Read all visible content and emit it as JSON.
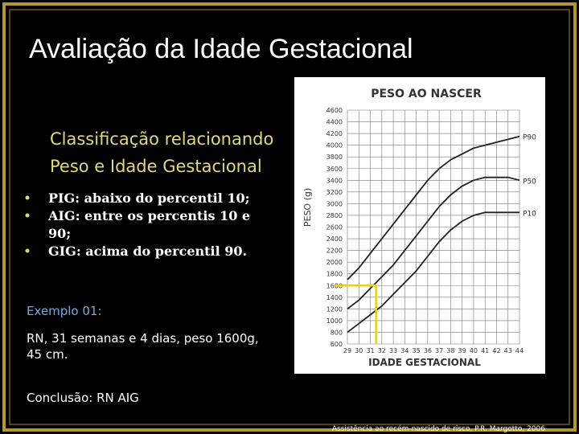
{
  "slide": {
    "title": "Avaliação da Idade Gestacional",
    "subtitle_lines": [
      "Classificação relacionando",
      "Peso e Idade Gestacional"
    ],
    "bullets": [
      [
        "PIG: abaixo do percentil 10;"
      ],
      [
        "AIG: entre os percentis 10 e",
        "90;"
      ],
      [
        "GIG: acima do percentil 90."
      ]
    ],
    "example_heading": "Exemplo 01:",
    "example_lines": [
      "RN, 31 semanas e 4 dias, peso 1600g,",
      "45 cm."
    ],
    "conclusion": "Conclusão: RN AIG",
    "footer": "Assistência ao recém-nascido de risco, P.R. Margotto, 2006"
  },
  "chart_data": {
    "type": "line",
    "title": "PESO AO NASCER",
    "y_label": "PESO (g)",
    "x_label": "IDADE GESTACIONAL",
    "x": [
      29,
      30,
      31,
      32,
      33,
      34,
      35,
      36,
      37,
      38,
      39,
      40,
      41,
      42,
      43,
      44
    ],
    "xlim": [
      29,
      44
    ],
    "xticks": [
      29,
      30,
      31,
      32,
      33,
      34,
      35,
      36,
      37,
      38,
      39,
      40,
      41,
      42,
      43,
      44
    ],
    "ylim": [
      600,
      4600
    ],
    "yticks": [
      600,
      800,
      1000,
      1200,
      1400,
      1600,
      1800,
      2000,
      2200,
      2400,
      2600,
      2800,
      3000,
      3200,
      3400,
      3600,
      3800,
      4000,
      4200,
      4400,
      4600
    ],
    "grid": true,
    "series": [
      {
        "name": "P90",
        "color": "#222222",
        "values": [
          1700,
          1900,
          2150,
          2400,
          2650,
          2900,
          3150,
          3400,
          3600,
          3750,
          3850,
          3950,
          4000,
          4050,
          4100,
          4150
        ]
      },
      {
        "name": "P50",
        "color": "#222222",
        "values": [
          1200,
          1350,
          1550,
          1750,
          1950,
          2200,
          2450,
          2700,
          2950,
          3150,
          3300,
          3400,
          3450,
          3450,
          3450,
          3400
        ]
      },
      {
        "name": "P10",
        "color": "#222222",
        "values": [
          800,
          950,
          1100,
          1250,
          1450,
          1650,
          1850,
          2100,
          2350,
          2550,
          2700,
          2800,
          2850,
          2850,
          2850,
          2850
        ]
      }
    ],
    "highlight": {
      "x": 31.5,
      "y": 1600,
      "color": "#e6d21e"
    }
  }
}
